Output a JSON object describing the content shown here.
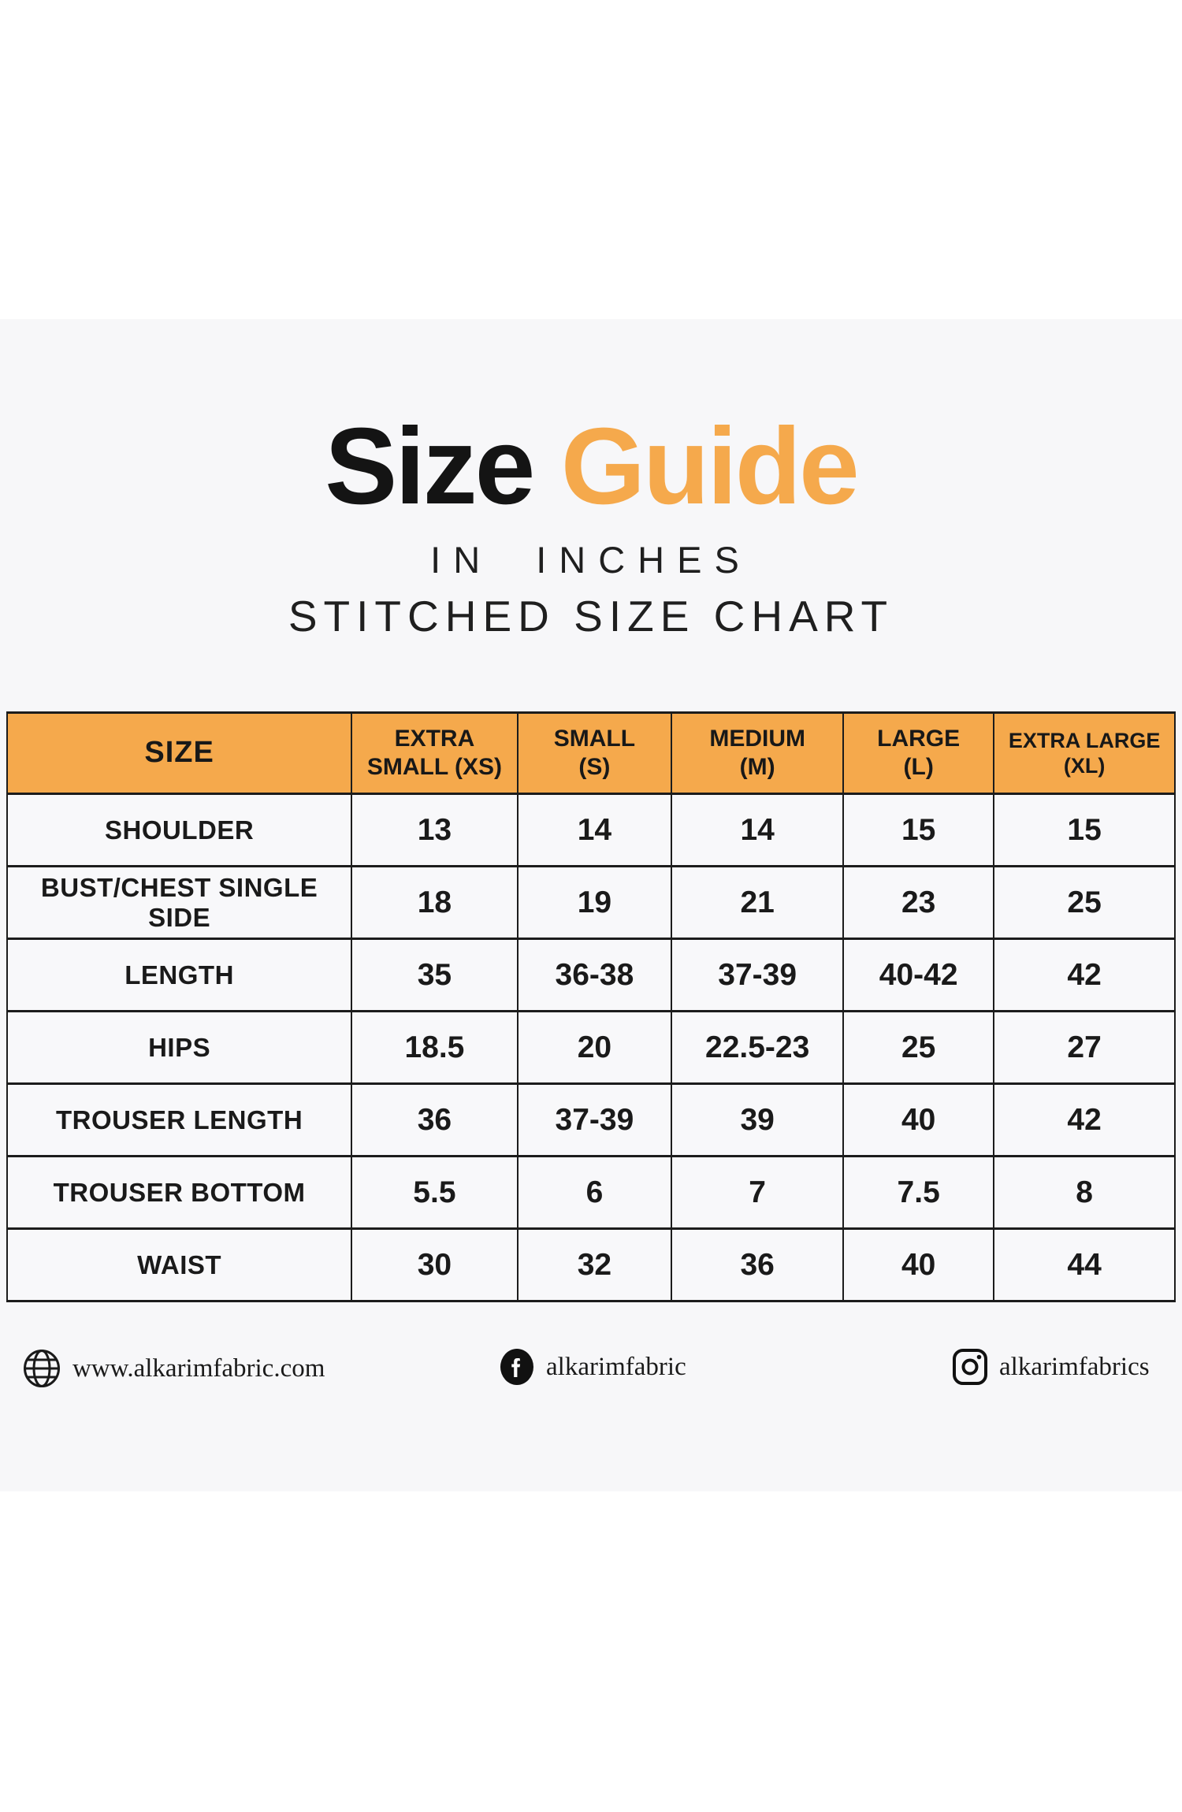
{
  "title": {
    "word_black": "Size",
    "word_orange": "Guide",
    "subtitle_line1": "IN INCHES",
    "subtitle_line2": "STITCHED SIZE CHART"
  },
  "colors": {
    "accent_orange": "#F5A94C",
    "panel_background": "#F7F7F9",
    "border_dark": "#1C1C1C"
  },
  "size_table": {
    "columns": [
      {
        "line1": "SIZE",
        "line2": ""
      },
      {
        "line1": "EXTRA",
        "line2": "SMALL (XS)"
      },
      {
        "line1": "SMALL",
        "line2": "(S)"
      },
      {
        "line1": "MEDIUM",
        "line2": "(M)"
      },
      {
        "line1": "LARGE",
        "line2": "(L)"
      },
      {
        "line1": "EXTRA LARGE",
        "line2": "(XL)"
      }
    ],
    "rows": [
      {
        "label": "SHOULDER",
        "values": [
          "13",
          "14",
          "14",
          "15",
          "15"
        ]
      },
      {
        "label": "BUST/CHEST SINGLE SIDE",
        "values": [
          "18",
          "19",
          "21",
          "23",
          "25"
        ]
      },
      {
        "label": "LENGTH",
        "values": [
          "35",
          "36-38",
          "37-39",
          "40-42",
          "42"
        ]
      },
      {
        "label": "HIPS",
        "values": [
          "18.5",
          "20",
          "22.5-23",
          "25",
          "27"
        ]
      },
      {
        "label": "TROUSER LENGTH",
        "values": [
          "36",
          "37-39",
          "39",
          "40",
          "42"
        ]
      },
      {
        "label": "TROUSER BOTTOM",
        "values": [
          "5.5",
          "6",
          "7",
          "7.5",
          "8"
        ]
      },
      {
        "label": "WAIST",
        "values": [
          "30",
          "32",
          "36",
          "40",
          "44"
        ]
      }
    ]
  },
  "footer": {
    "website": "www.alkarimfabric.com",
    "facebook_handle": "alkarimfabric",
    "instagram_handle": "alkarimfabrics"
  }
}
